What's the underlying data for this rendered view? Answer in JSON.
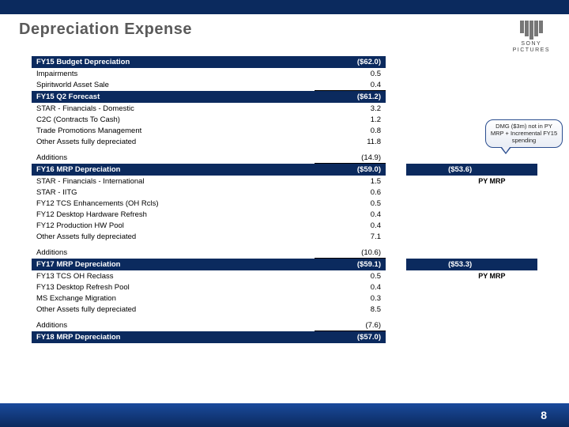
{
  "page": {
    "title": "Depreciation Expense",
    "page_number": "8"
  },
  "logo": {
    "brand_top": "SONY",
    "brand_bottom": "PICTURES"
  },
  "callout": {
    "text": "DMG ($3m) not in PY MRP + Incremental FY15 spending"
  },
  "rows": [
    {
      "type": "header",
      "label": "FY15 Budget Depreciation",
      "v1": "($62.0)",
      "v2": "",
      "hdr_mode": "no-v2"
    },
    {
      "type": "line",
      "label": "Impairments",
      "v1": "0.5"
    },
    {
      "type": "line",
      "label": "Spiritworld Asset Sale",
      "v1": "0.4",
      "underline1": true
    },
    {
      "type": "header",
      "label": "FY15 Q2 Forecast",
      "v1": "($61.2)",
      "v2": "",
      "hdr_mode": "no-v2"
    },
    {
      "type": "line",
      "label": "STAR - Financials - Domestic",
      "v1": "3.2"
    },
    {
      "type": "line",
      "label": "C2C (Contracts To Cash)",
      "v1": "1.2"
    },
    {
      "type": "line",
      "label": "Trade Promotions Management",
      "v1": "0.8"
    },
    {
      "type": "line",
      "label": "Other Assets fully depreciated",
      "v1": "11.8"
    },
    {
      "type": "spacer"
    },
    {
      "type": "line",
      "label": "Additions",
      "v1": "(14.9)",
      "underline1": true
    },
    {
      "type": "header2",
      "label": "FY16 MRP Depreciation",
      "v1": "($59.0)",
      "v2": "($53.6)"
    },
    {
      "type": "line",
      "label": "STAR - Financials - International",
      "v1": "1.5",
      "v3": "PY MRP",
      "v3bold": true
    },
    {
      "type": "line",
      "label": "STAR - IITG",
      "v1": "0.6"
    },
    {
      "type": "line",
      "label": "FY12 TCS Enhancements (OH Rcls)",
      "v1": "0.5"
    },
    {
      "type": "line",
      "label": "FY12 Desktop Hardware Refresh",
      "v1": "0.4"
    },
    {
      "type": "line",
      "label": "FY12 Production HW Pool",
      "v1": "0.4"
    },
    {
      "type": "line",
      "label": "Other Assets fully depreciated",
      "v1": "7.1"
    },
    {
      "type": "spacer"
    },
    {
      "type": "line",
      "label": "Additions",
      "v1": "(10.6)",
      "underline1": true
    },
    {
      "type": "header2",
      "label": "FY17 MRP Depreciation",
      "v1": "($59.1)",
      "v2": "($53.3)"
    },
    {
      "type": "line",
      "label": "FY13 TCS OH Reclass",
      "v1": "0.5",
      "v3": "PY MRP",
      "v3bold": true
    },
    {
      "type": "line",
      "label": "FY13 Desktop Refresh Pool",
      "v1": "0.4"
    },
    {
      "type": "line",
      "label": "MS Exchange Migration",
      "v1": "0.3"
    },
    {
      "type": "line",
      "label": "Other Assets fully depreciated",
      "v1": "8.5"
    },
    {
      "type": "spacer"
    },
    {
      "type": "line",
      "label": "Additions",
      "v1": "(7.6)",
      "underline1": true
    },
    {
      "type": "header",
      "label": "FY18 MRP Depreciation",
      "v1": "($57.0)",
      "v2": "",
      "hdr_mode": "no-v2"
    }
  ]
}
